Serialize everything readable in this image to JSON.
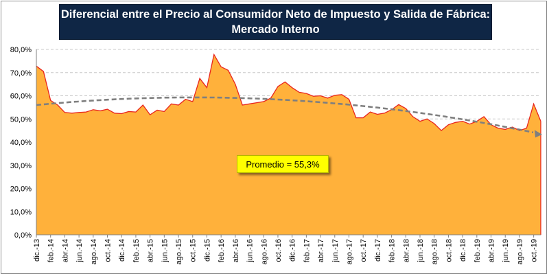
{
  "chart_data": {
    "type": "area",
    "title_lines": [
      "Diferencial entre el Precio al Consumidor Neto de Impuesto y Salida de Fábrica:",
      "Mercado Interno"
    ],
    "annotation": "Promedio = 55,3%",
    "y_ticks": [
      "0,0%",
      "10,0%",
      "20,0%",
      "30,0%",
      "40,0%",
      "50,0%",
      "60,0%",
      "70,0%",
      "80,0%"
    ],
    "ylim": [
      0,
      80
    ],
    "x_tick_labels": [
      "dic.-13",
      "feb.-14",
      "abr.-14",
      "jun.-14",
      "ago.-14",
      "oct.-14",
      "dic.-14",
      "feb.-15",
      "abr.-15",
      "jun.-15",
      "ago.-15",
      "oct.-15",
      "dic.-15",
      "feb.-16",
      "abr.-16",
      "jun.-16",
      "ago.-16",
      "oct.-16",
      "dic.-16",
      "feb.-17",
      "abr.-17",
      "jun.-17",
      "ago.-17",
      "oct.-17",
      "dic.-17",
      "feb.-18",
      "abr.-18",
      "jun.-18",
      "ago.-18",
      "oct.-18",
      "dic.-18",
      "feb.-19",
      "abr.-19",
      "jun.-19",
      "ago.-19",
      "oct.-19"
    ],
    "x_start": "dic.-13",
    "x_end": "oct.-19",
    "values": [
      72.8,
      70.5,
      58.0,
      56.0,
      52.8,
      52.5,
      52.8,
      53.0,
      54.0,
      53.5,
      54.2,
      52.5,
      52.3,
      53.2,
      53.0,
      56.0,
      51.8,
      53.8,
      53.2,
      56.5,
      56.0,
      58.5,
      57.5,
      67.5,
      63.5,
      77.8,
      72.5,
      71.0,
      65.0,
      56.0,
      56.5,
      57.0,
      57.5,
      59.0,
      64.0,
      66.0,
      63.5,
      61.5,
      61.0,
      59.8,
      60.0,
      59.0,
      60.2,
      60.5,
      58.5,
      50.5,
      50.5,
      53.0,
      52.0,
      52.5,
      54.0,
      56.2,
      54.5,
      51.0,
      49.0,
      50.0,
      48.0,
      45.0,
      47.5,
      48.5,
      49.0,
      47.8,
      49.0,
      51.0,
      47.5,
      46.0,
      45.5,
      46.5,
      45.0,
      46.0,
      56.5,
      49.0
    ],
    "trend": {
      "type": "polynomial",
      "start": 56.0,
      "peak": 59.3,
      "end": 43.5
    },
    "colors": {
      "area_fill": "#ffb13b",
      "area_line": "#e8251e",
      "trend": "#7f7f7f",
      "grid": "#c8c8c8",
      "annotation_bg": "#ffff00",
      "title_bg": "#0f2645"
    },
    "grid": "dashed-horizontal",
    "legend": "none"
  }
}
